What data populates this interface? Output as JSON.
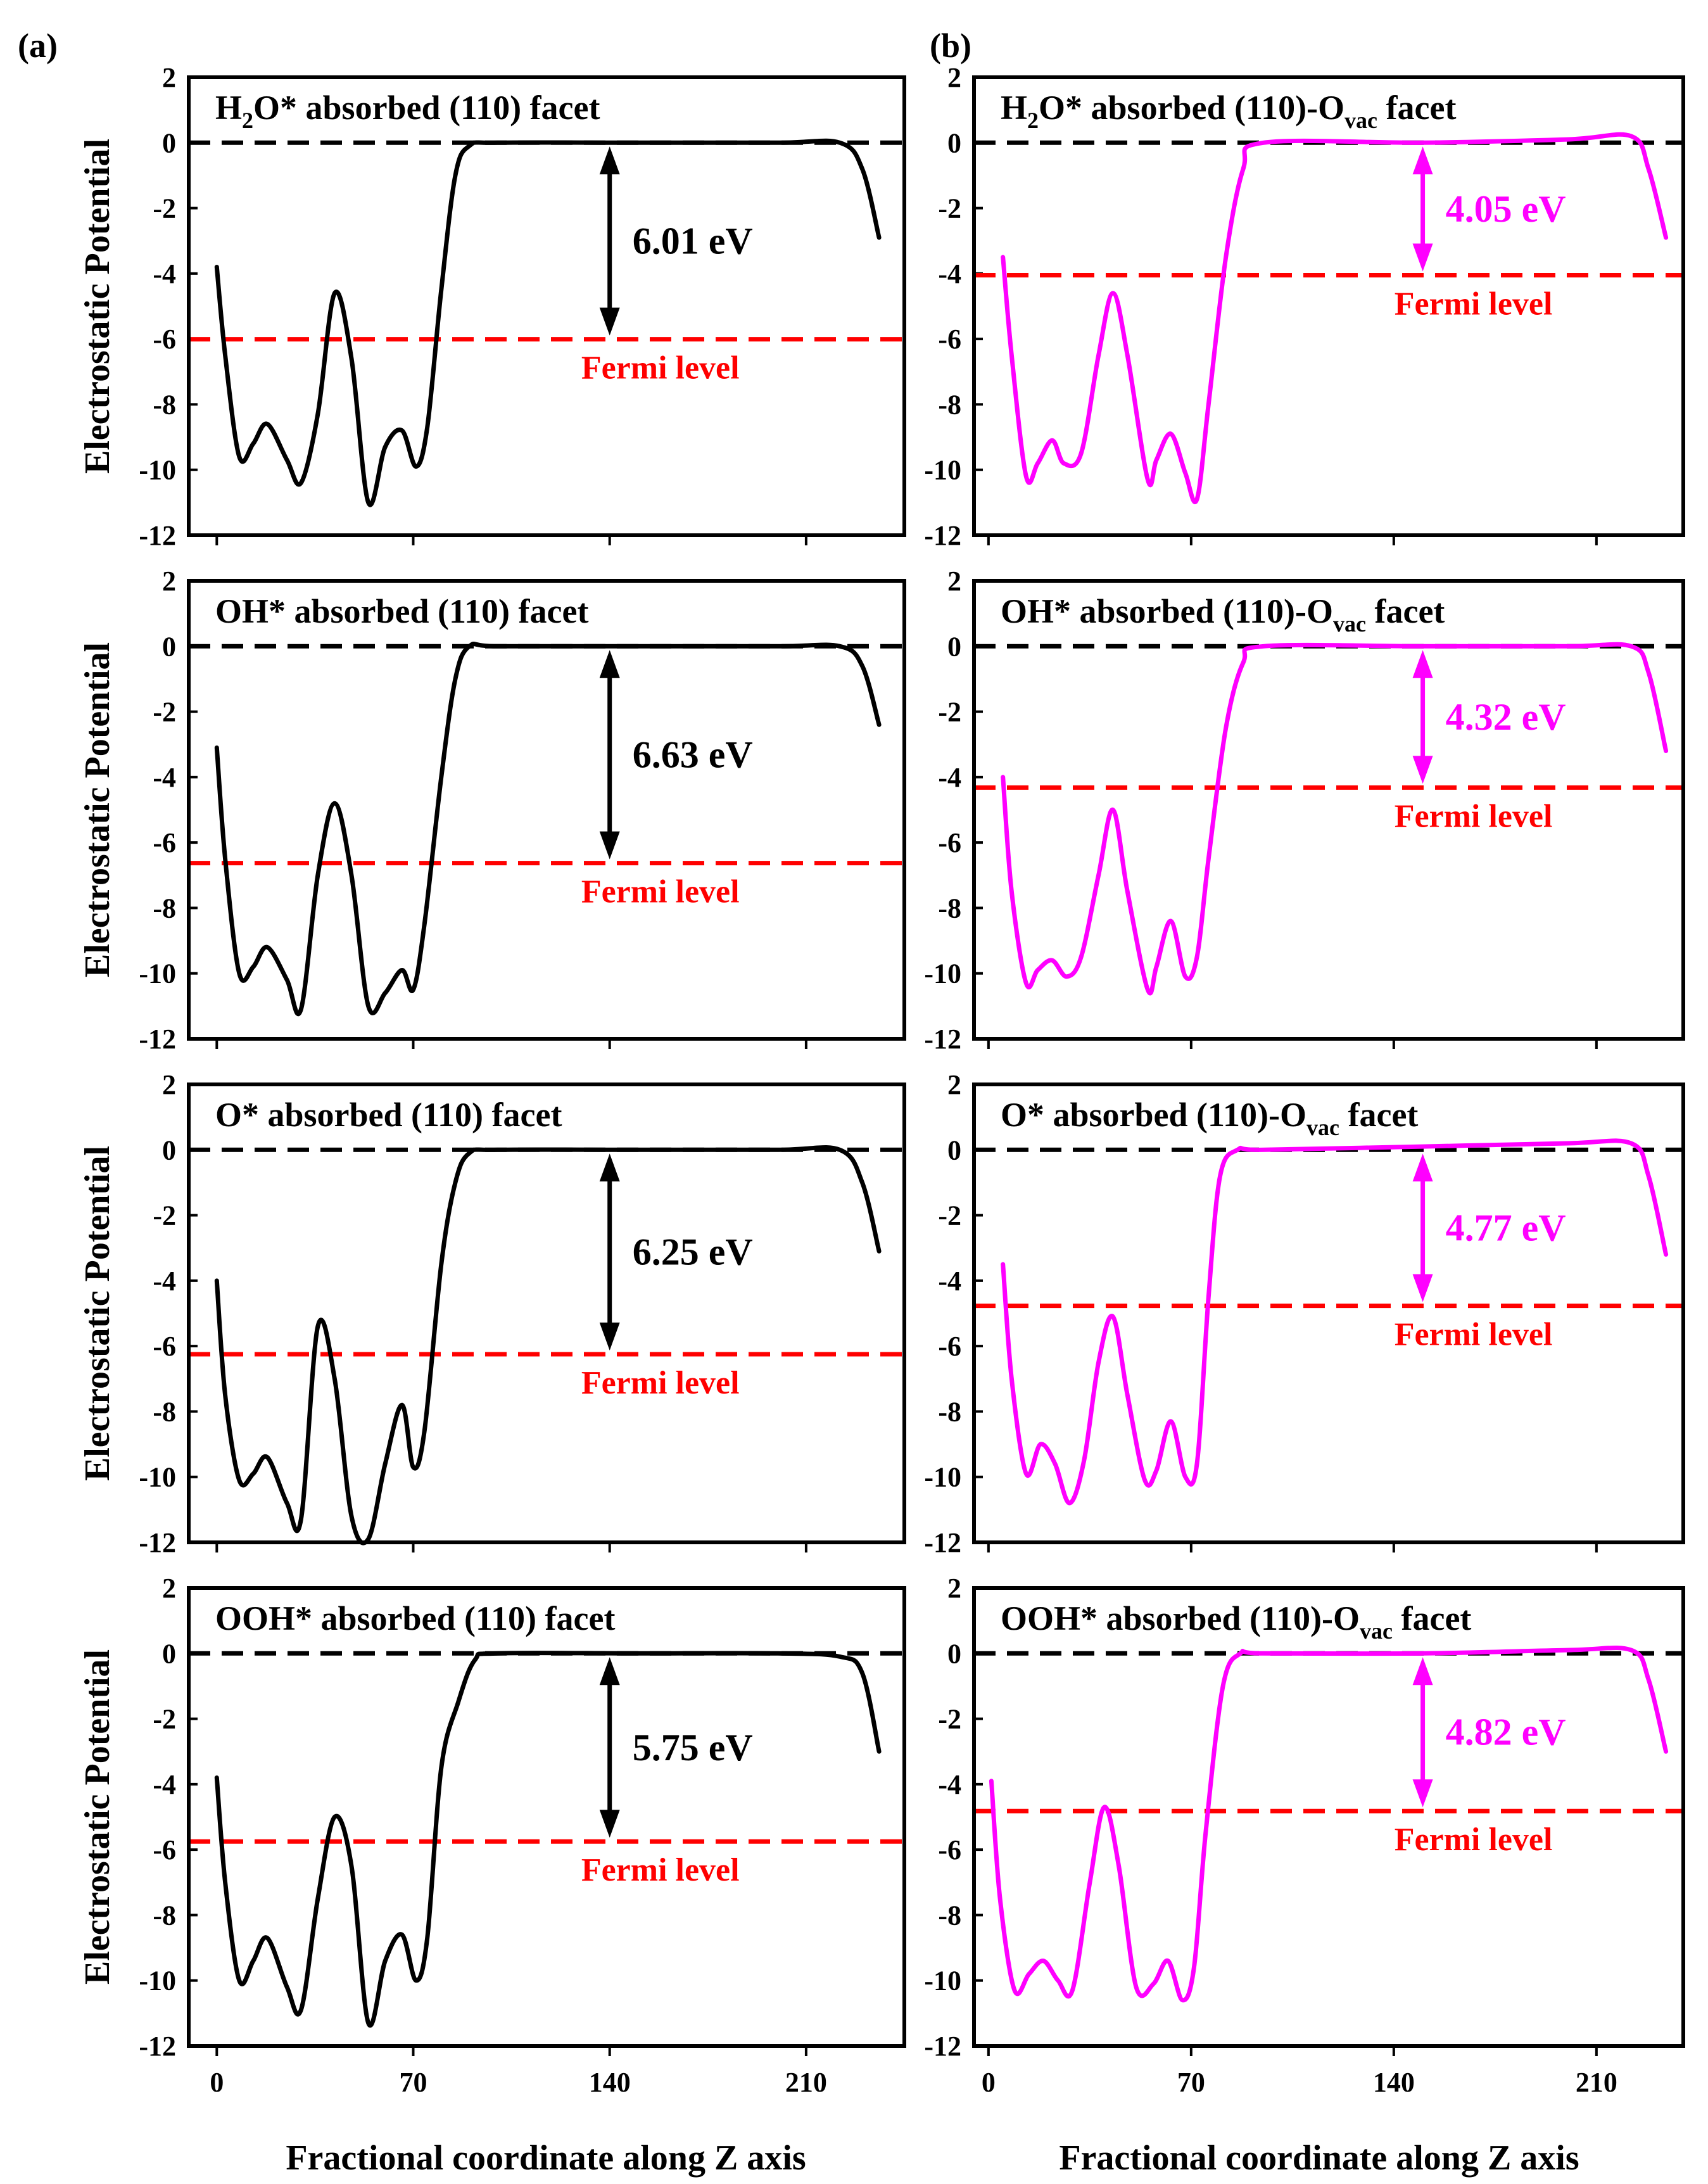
{
  "figure": {
    "panel_labels": [
      "(a)",
      "(b)"
    ],
    "y_axis_label": "Electrostatic Potential",
    "x_axis_label": "Fractional coordinate along Z axis",
    "fermi_label": "Fermi level",
    "y_ticks": [
      "2",
      "0",
      "-2",
      "-4",
      "-6",
      "-8",
      "-10",
      "-12"
    ],
    "x_ticks": [
      "0",
      "70",
      "140",
      "210"
    ],
    "colors": {
      "pristine": "#000000",
      "vacancy": "#ff00ff",
      "vacuum_line": "#000000",
      "fermi_line": "#ff0000"
    }
  },
  "chart_data": [
    {
      "type": "line",
      "column": "a",
      "row": 0,
      "title_main": "H",
      "title_sub": "2",
      "title_rest": "O* absorbed (110) facet",
      "value_label": "6.01 eV",
      "work_function": 6.01,
      "fermi": -6.01,
      "series_color": "#000000",
      "xlim": [
        -10,
        245
      ],
      "ylim": [
        -12,
        2
      ],
      "xlabel": "Fractional coordinate along Z axis",
      "ylabel": "Electrostatic Potential",
      "x": [
        0,
        3,
        8,
        13,
        18,
        25,
        30,
        36,
        42,
        48,
        54,
        60,
        66,
        71,
        75,
        80,
        85,
        90,
        100,
        150,
        200,
        222,
        230,
        236
      ],
      "y": [
        -3.8,
        -6.5,
        -9.6,
        -9.2,
        -8.6,
        -9.7,
        -10.4,
        -8.3,
        -4.6,
        -6.6,
        -11.0,
        -9.3,
        -8.8,
        -9.9,
        -8.7,
        -4.5,
        -1.0,
        -0.1,
        0.0,
        0.0,
        0.0,
        0.0,
        -0.8,
        -2.9
      ]
    },
    {
      "type": "line",
      "column": "a",
      "row": 1,
      "title_main": "OH* absorbed (110) facet",
      "title_sub": "",
      "title_rest": "",
      "value_label": "6.63 eV",
      "work_function": 6.63,
      "fermi": -6.63,
      "series_color": "#000000",
      "xlim": [
        -10,
        245
      ],
      "ylim": [
        -12,
        2
      ],
      "xlabel": "Fractional coordinate along Z axis",
      "ylabel": "Electrostatic Potential",
      "x": [
        0,
        3,
        8,
        13,
        18,
        25,
        30,
        36,
        42,
        48,
        54,
        60,
        66,
        70,
        74,
        80,
        85,
        90,
        100,
        150,
        200,
        222,
        230,
        236
      ],
      "y": [
        -3.1,
        -6.5,
        -10.0,
        -9.8,
        -9.2,
        -10.2,
        -11.1,
        -7.0,
        -4.8,
        -7.0,
        -11.0,
        -10.6,
        -9.9,
        -10.5,
        -8.5,
        -4.0,
        -1.0,
        0.0,
        0.0,
        0.0,
        0.0,
        0.0,
        -0.6,
        -2.4
      ]
    },
    {
      "type": "line",
      "column": "a",
      "row": 2,
      "title_main": "O* absorbed (110) facet",
      "title_sub": "",
      "title_rest": "",
      "value_label": "6.25 eV",
      "work_function": 6.25,
      "fermi": -6.25,
      "series_color": "#000000",
      "xlim": [
        -10,
        245
      ],
      "ylim": [
        -12,
        2
      ],
      "xlabel": "Fractional coordinate along Z axis",
      "ylabel": "Electrostatic Potential",
      "x": [
        0,
        3,
        8,
        13,
        18,
        25,
        30,
        36,
        42,
        48,
        54,
        60,
        66,
        70,
        74,
        80,
        85,
        90,
        100,
        150,
        200,
        222,
        230,
        236
      ],
      "y": [
        -4.0,
        -7.5,
        -10.1,
        -9.9,
        -9.4,
        -10.8,
        -11.3,
        -5.4,
        -7.0,
        -11.2,
        -11.9,
        -9.6,
        -7.8,
        -9.7,
        -8.6,
        -3.5,
        -1.0,
        -0.1,
        0.0,
        0.0,
        0.0,
        0.0,
        -1.0,
        -3.1
      ]
    },
    {
      "type": "line",
      "column": "a",
      "row": 3,
      "title_main": "OOH* absorbed (110) facet",
      "title_sub": "",
      "title_rest": "",
      "value_label": "5.75 eV",
      "work_function": 5.75,
      "fermi": -5.75,
      "series_color": "#000000",
      "xlim": [
        -10,
        245
      ],
      "ylim": [
        -12,
        2
      ],
      "xlabel": "Fractional coordinate along Z axis",
      "ylabel": "Electrostatic Potential",
      "x": [
        0,
        3,
        8,
        13,
        18,
        25,
        30,
        36,
        42,
        48,
        54,
        60,
        66,
        71,
        75,
        80,
        86,
        92,
        100,
        150,
        200,
        222,
        230,
        236
      ],
      "y": [
        -3.8,
        -7.0,
        -10.0,
        -9.4,
        -8.7,
        -10.2,
        -10.9,
        -7.5,
        -5.0,
        -6.5,
        -11.3,
        -9.4,
        -8.6,
        -10.0,
        -8.7,
        -3.5,
        -1.5,
        -0.2,
        0.0,
        0.0,
        0.0,
        -0.1,
        -0.6,
        -3.0
      ]
    },
    {
      "type": "line",
      "column": "b",
      "row": 0,
      "title_main": "H",
      "title_sub": "2",
      "title_rest": "O* absorbed (110)-O",
      "title_sub2": "vac",
      "title_tail": " facet",
      "value_label": "4.05 eV",
      "work_function": 4.05,
      "fermi": -4.05,
      "series_color": "#ff00ff",
      "xlim": [
        -5,
        240
      ],
      "ylim": [
        -12,
        2
      ],
      "xlabel": "Fractional coordinate along Z axis",
      "ylabel": "Electrostatic Potential",
      "x": [
        5,
        8,
        13,
        17,
        22,
        26,
        32,
        38,
        43,
        48,
        55,
        58,
        63,
        68,
        72,
        76,
        82,
        88,
        95,
        150,
        200,
        222,
        228,
        234
      ],
      "y": [
        -3.5,
        -6.5,
        -10.2,
        -9.8,
        -9.1,
        -9.8,
        -9.5,
        -6.5,
        -4.6,
        -6.5,
        -10.3,
        -9.7,
        -8.9,
        -10.1,
        -10.9,
        -8.0,
        -3.5,
        -0.8,
        0.0,
        0.0,
        0.1,
        0.2,
        -0.8,
        -2.9
      ]
    },
    {
      "type": "line",
      "column": "b",
      "row": 1,
      "title_main": "OH* absorbed (110)-O",
      "title_sub": "",
      "title_rest": "",
      "title_sub2": "vac",
      "title_tail": " facet",
      "value_label": "4.32 eV",
      "work_function": 4.32,
      "fermi": -4.32,
      "series_color": "#ff00ff",
      "xlim": [
        -5,
        240
      ],
      "ylim": [
        -12,
        2
      ],
      "xlabel": "Fractional coordinate along Z axis",
      "ylabel": "Electrostatic Potential",
      "x": [
        5,
        8,
        13,
        17,
        22,
        27,
        32,
        38,
        43,
        48,
        55,
        58,
        63,
        68,
        72,
        76,
        82,
        88,
        95,
        150,
        200,
        222,
        228,
        234
      ],
      "y": [
        -4.0,
        -7.5,
        -10.3,
        -9.9,
        -9.6,
        -10.1,
        -9.5,
        -7.0,
        -5.0,
        -7.5,
        -10.5,
        -9.8,
        -8.4,
        -10.1,
        -9.5,
        -6.5,
        -2.5,
        -0.5,
        0.0,
        0.0,
        0.0,
        0.0,
        -0.8,
        -3.2
      ]
    },
    {
      "type": "line",
      "column": "b",
      "row": 2,
      "title_main": "O* absorbed (110)-O",
      "title_sub": "",
      "title_rest": "",
      "title_sub2": "vac",
      "title_tail": " facet",
      "value_label": "4.77 eV",
      "work_function": 4.77,
      "fermi": -4.77,
      "series_color": "#ff00ff",
      "xlim": [
        -5,
        240
      ],
      "ylim": [
        -12,
        2
      ],
      "xlabel": "Fractional coordinate along Z axis",
      "ylabel": "Electrostatic Potential",
      "x": [
        5,
        8,
        13,
        18,
        23,
        28,
        33,
        38,
        43,
        48,
        54,
        58,
        63,
        68,
        72,
        76,
        80,
        86,
        95,
        150,
        200,
        222,
        228,
        234
      ],
      "y": [
        -3.5,
        -7.0,
        -9.9,
        -9.0,
        -9.6,
        -10.8,
        -9.5,
        -6.5,
        -5.1,
        -7.5,
        -10.1,
        -9.8,
        -8.3,
        -10.0,
        -9.6,
        -4.5,
        -0.8,
        0.0,
        0.0,
        0.1,
        0.2,
        0.2,
        -0.8,
        -3.2
      ]
    },
    {
      "type": "line",
      "column": "b",
      "row": 3,
      "title_main": "OOH* absorbed (110)-O",
      "title_sub": "",
      "title_rest": "",
      "title_sub2": "vac",
      "title_tail": " facet",
      "value_label": "4.82 eV",
      "work_function": 4.82,
      "fermi": -4.82,
      "series_color": "#ff00ff",
      "xlim": [
        -5,
        240
      ],
      "ylim": [
        -12,
        2
      ],
      "xlabel": "Fractional coordinate along Z axis",
      "ylabel": "Electrostatic Potential",
      "x": [
        1,
        4,
        9,
        14,
        19,
        24,
        29,
        35,
        40,
        45,
        51,
        57,
        62,
        67,
        71,
        75,
        81,
        87,
        95,
        150,
        200,
        222,
        228,
        234
      ],
      "y": [
        -3.9,
        -7.5,
        -10.3,
        -9.8,
        -9.4,
        -10.0,
        -10.3,
        -7.0,
        -4.7,
        -6.5,
        -10.2,
        -10.1,
        -9.4,
        -10.6,
        -9.6,
        -5.5,
        -1.0,
        0.0,
        0.0,
        0.0,
        0.1,
        0.1,
        -0.8,
        -3.0
      ]
    }
  ]
}
